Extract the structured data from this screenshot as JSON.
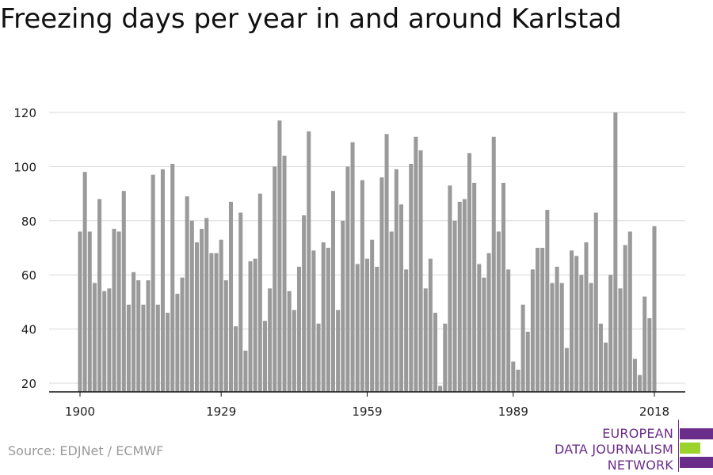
{
  "title": "Freezing days per year in and around Karlstad",
  "source": "Source: EDJNet / ECMWF",
  "logo": {
    "lines": [
      "EUROPEAN",
      "DATA JOURNALISM",
      "NETWORK"
    ],
    "colors": [
      "#6b2d8a",
      "#9bd22c",
      "#6b2d8a"
    ]
  },
  "chart_data": {
    "type": "bar",
    "title": "Freezing days per year in and around Karlstad",
    "xlabel": "",
    "ylabel": "",
    "ylim": [
      17,
      120
    ],
    "yticks": [
      20,
      40,
      60,
      80,
      100,
      120
    ],
    "xtick_labels": [
      "1900",
      "1929",
      "1959",
      "1989",
      "2018"
    ],
    "grid": true,
    "bar_color": "#9a9a9a",
    "categories": [
      1900,
      1901,
      1902,
      1903,
      1904,
      1905,
      1906,
      1907,
      1908,
      1909,
      1910,
      1911,
      1912,
      1913,
      1914,
      1915,
      1916,
      1917,
      1918,
      1919,
      1920,
      1921,
      1922,
      1923,
      1924,
      1925,
      1926,
      1927,
      1928,
      1929,
      1930,
      1931,
      1932,
      1933,
      1934,
      1935,
      1936,
      1937,
      1938,
      1939,
      1940,
      1941,
      1942,
      1943,
      1944,
      1945,
      1946,
      1947,
      1948,
      1949,
      1950,
      1951,
      1952,
      1953,
      1954,
      1955,
      1956,
      1957,
      1958,
      1959,
      1960,
      1961,
      1962,
      1963,
      1964,
      1965,
      1966,
      1967,
      1968,
      1969,
      1970,
      1971,
      1972,
      1973,
      1974,
      1975,
      1976,
      1977,
      1978,
      1979,
      1980,
      1981,
      1982,
      1983,
      1984,
      1985,
      1986,
      1987,
      1988,
      1989,
      1990,
      1991,
      1992,
      1993,
      1994,
      1995,
      1996,
      1997,
      1998,
      1999,
      2000,
      2001,
      2002,
      2003,
      2004,
      2005,
      2006,
      2007,
      2008,
      2009,
      2010,
      2011,
      2012,
      2013,
      2014,
      2015,
      2016,
      2017,
      2018
    ],
    "values": [
      76,
      98,
      76,
      57,
      88,
      54,
      55,
      77,
      76,
      91,
      49,
      61,
      58,
      49,
      58,
      97,
      49,
      99,
      46,
      101,
      53,
      59,
      89,
      80,
      72,
      77,
      81,
      68,
      68,
      73,
      58,
      87,
      41,
      83,
      32,
      65,
      66,
      90,
      43,
      55,
      100,
      117,
      104,
      54,
      47,
      63,
      82,
      113,
      69,
      42,
      72,
      70,
      91,
      47,
      80,
      100,
      109,
      64,
      95,
      66,
      73,
      63,
      96,
      112,
      76,
      99,
      86,
      62,
      101,
      111,
      106,
      55,
      66,
      46,
      19,
      42,
      93,
      80,
      87,
      88,
      105,
      94,
      64,
      59,
      68,
      111,
      76,
      94,
      62,
      28,
      25,
      49,
      39,
      62,
      70,
      70,
      84,
      57,
      63,
      57,
      33,
      69,
      67,
      60,
      72,
      57,
      83,
      42,
      35,
      60,
      120,
      55,
      71,
      76,
      29,
      23,
      52,
      44,
      78
    ]
  }
}
